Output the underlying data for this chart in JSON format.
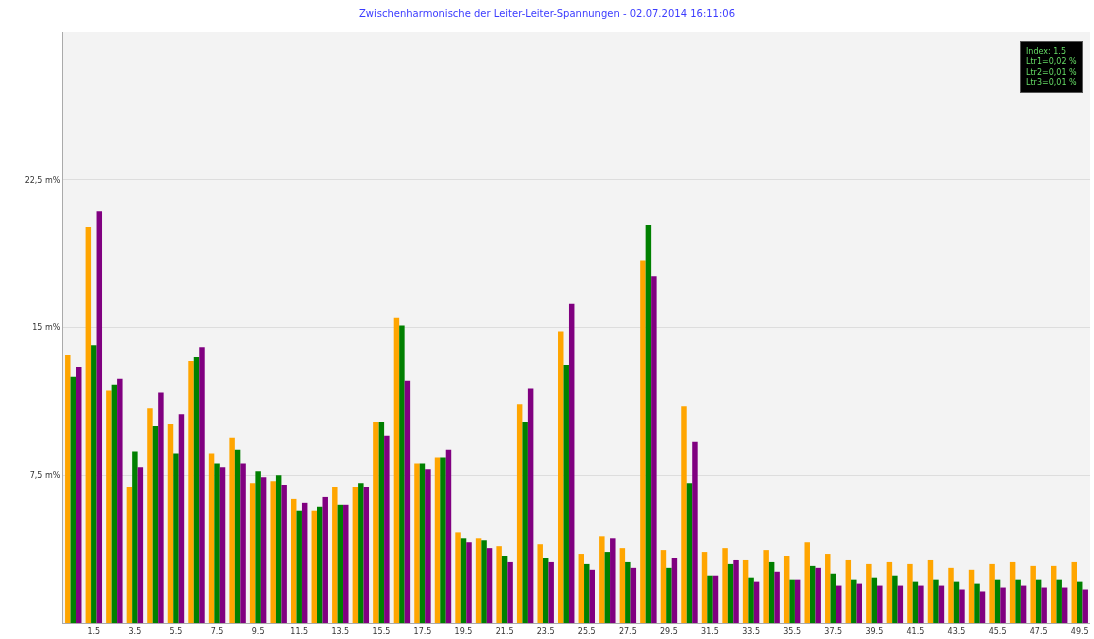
{
  "chart_data": {
    "type": "bar",
    "title": "Zwischenharmonische der Leiter-Leiter-Spannungen - 02.07.2014 16:11:06",
    "categories": [
      null,
      "1.5",
      null,
      "3.5",
      null,
      "5.5",
      null,
      "7.5",
      null,
      "9.5",
      null,
      "11.5",
      null,
      "13.5",
      null,
      "15.5",
      null,
      "17.5",
      null,
      "19.5",
      null,
      "21.5",
      null,
      "23.5",
      null,
      "25.5",
      null,
      "27.5",
      null,
      "29.5",
      null,
      "31.5",
      null,
      "33.5",
      null,
      "35.5",
      null,
      "37.5",
      null,
      "39.5",
      null,
      "41.5",
      null,
      "43.5",
      null,
      "45.5",
      null,
      "47.5",
      null,
      "49.5"
    ],
    "series": [
      {
        "color": "#ffa500",
        "values": [
          13.6,
          20.1,
          11.8,
          6.9,
          10.9,
          10.1,
          13.3,
          8.6,
          9.4,
          7.1,
          7.2,
          6.3,
          5.7,
          6.9,
          6.9,
          10.2,
          15.5,
          8.1,
          8.4,
          4.6,
          4.3,
          3.9,
          11.1,
          4.0,
          14.8,
          3.5,
          4.4,
          3.8,
          18.4,
          3.7,
          11.0,
          3.6,
          3.8,
          3.2,
          3.7,
          3.4,
          4.1,
          3.5,
          3.2,
          3.0,
          3.1,
          3.0,
          3.2,
          2.8,
          2.7,
          3.0,
          3.1,
          2.9,
          2.9,
          3.1
        ]
      },
      {
        "color": "#008000",
        "values": [
          12.5,
          14.1,
          12.1,
          8.7,
          10.0,
          8.6,
          13.5,
          8.1,
          8.8,
          7.7,
          7.5,
          5.7,
          5.9,
          6.0,
          7.1,
          10.2,
          15.1,
          8.1,
          8.4,
          4.3,
          4.2,
          3.4,
          10.2,
          3.3,
          13.1,
          3.0,
          3.6,
          3.1,
          20.2,
          2.8,
          7.1,
          2.4,
          3.0,
          2.3,
          3.1,
          2.2,
          2.9,
          2.5,
          2.2,
          2.3,
          2.4,
          2.1,
          2.2,
          2.1,
          2.0,
          2.2,
          2.2,
          2.2,
          2.2,
          2.1
        ]
      },
      {
        "color": "#800080",
        "values": [
          13.0,
          20.9,
          12.4,
          7.9,
          11.7,
          10.6,
          14.0,
          7.9,
          8.1,
          7.4,
          7.0,
          6.1,
          6.4,
          6.0,
          6.9,
          9.5,
          12.3,
          7.8,
          8.8,
          4.1,
          3.8,
          3.1,
          11.9,
          3.1,
          16.2,
          2.7,
          4.3,
          2.8,
          17.6,
          3.3,
          9.2,
          2.4,
          3.2,
          2.1,
          2.6,
          2.2,
          2.8,
          1.9,
          2.0,
          1.9,
          1.9,
          1.9,
          1.9,
          1.7,
          1.6,
          1.8,
          1.9,
          1.8,
          1.8,
          1.7
        ]
      }
    ],
    "ylim": [
      0,
      30
    ],
    "yticks": [
      {
        "value": 0,
        "label": null
      },
      {
        "value": 7.5,
        "label": "7,5 m%"
      },
      {
        "value": 15,
        "label": "15 m%"
      },
      {
        "value": 22.5,
        "label": "22,5 m%"
      }
    ],
    "grid": "y",
    "annotations": [
      "Index: 1.5",
      "Ltr1=0,02 %",
      "Ltr2=0,01 %",
      "Ltr3=0,01 %"
    ]
  }
}
